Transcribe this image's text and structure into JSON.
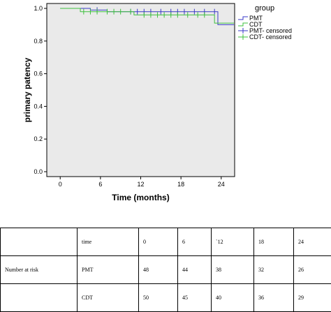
{
  "chart_data": {
    "type": "line",
    "xlabel": "Time (months)",
    "ylabel": "primary patency",
    "xlim": [
      -2,
      26
    ],
    "ylim": [
      -0.03,
      1.03
    ],
    "xticks": [
      0,
      6,
      12,
      18,
      24
    ],
    "yticks": [
      0.0,
      0.2,
      0.4,
      0.6,
      0.8,
      1.0
    ],
    "xtick_labels": [
      "0",
      "6",
      "12",
      "18",
      "24"
    ],
    "ytick_labels": [
      "0.0",
      "0.2",
      "0.4",
      "0.6",
      "0.8",
      "1.0"
    ],
    "legend_title": "group",
    "legend_position": "right",
    "legend_labels": [
      "PMT",
      "CDT",
      "PMT- censored",
      "CDT- censored"
    ],
    "grid": false,
    "background": "#eaeaea",
    "series": [
      {
        "name": "PMT",
        "color": "#3a3ac8",
        "step_x": [
          0,
          4.5,
          7,
          25.9
        ],
        "step_y": [
          1.0,
          0.99,
          0.98,
          0.98
        ],
        "step_end_x": [
          23.5,
          25.9
        ],
        "step_end_y": [
          0.9,
          0.9
        ],
        "censored_x": [
          5.5,
          10.5,
          11.5,
          12.5,
          13.5,
          15,
          16.5,
          17.5,
          18.5,
          20,
          21.5,
          23
        ],
        "drops": [
          [
            4.5,
            0.99
          ],
          [
            7,
            0.98
          ],
          [
            23.5,
            0.9
          ]
        ]
      },
      {
        "name": "CDT",
        "color": "#3ec03e",
        "steps": [
          [
            0,
            1.0
          ],
          [
            3,
            0.98
          ],
          [
            11,
            0.96
          ],
          [
            23,
            0.91
          ],
          [
            25.9,
            0.91
          ]
        ],
        "censored_x": [
          3.5,
          4.5,
          5.5,
          7,
          8,
          9,
          10.5,
          12.5,
          13.5,
          14.5,
          15.5,
          16.5,
          17.5,
          19,
          20.5,
          21.5
        ]
      }
    ]
  },
  "risk_table": {
    "header": [
      "",
      "time",
      "0",
      "6",
      "`12",
      "18",
      "24"
    ],
    "rows": [
      [
        "Number at risk",
        "PMT",
        "48",
        "44",
        "38",
        "32",
        "26"
      ],
      [
        "",
        "CDT",
        "50",
        "45",
        "40",
        "36",
        "29"
      ]
    ]
  }
}
